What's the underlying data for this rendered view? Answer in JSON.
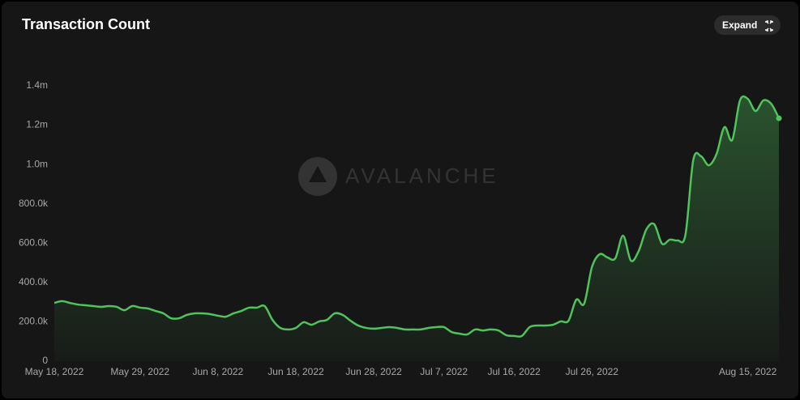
{
  "chart_data": {
    "type": "area",
    "title": "Transaction Count",
    "button": "Expand",
    "watermark": "AVALANCHE",
    "color": "#4fc45c",
    "x": [
      "2022-05-18",
      "2022-05-19",
      "2022-05-20",
      "2022-05-21",
      "2022-05-22",
      "2022-05-23",
      "2022-05-24",
      "2022-05-25",
      "2022-05-26",
      "2022-05-27",
      "2022-05-28",
      "2022-05-29",
      "2022-05-30",
      "2022-05-31",
      "2022-06-01",
      "2022-06-02",
      "2022-06-03",
      "2022-06-04",
      "2022-06-05",
      "2022-06-06",
      "2022-06-07",
      "2022-06-08",
      "2022-06-09",
      "2022-06-10",
      "2022-06-11",
      "2022-06-12",
      "2022-06-13",
      "2022-06-14",
      "2022-06-15",
      "2022-06-16",
      "2022-06-17",
      "2022-06-18",
      "2022-06-19",
      "2022-06-20",
      "2022-06-21",
      "2022-06-22",
      "2022-06-23",
      "2022-06-24",
      "2022-06-25",
      "2022-06-26",
      "2022-06-27",
      "2022-06-28",
      "2022-06-29",
      "2022-06-30",
      "2022-07-01",
      "2022-07-02",
      "2022-07-03",
      "2022-07-04",
      "2022-07-05",
      "2022-07-06",
      "2022-07-07",
      "2022-07-08",
      "2022-07-09",
      "2022-07-10",
      "2022-07-11",
      "2022-07-12",
      "2022-07-13",
      "2022-07-14",
      "2022-07-15",
      "2022-07-16",
      "2022-07-17",
      "2022-07-18",
      "2022-07-19",
      "2022-07-20",
      "2022-07-21",
      "2022-07-22",
      "2022-07-23",
      "2022-07-24",
      "2022-07-25",
      "2022-07-26",
      "2022-07-27",
      "2022-07-28",
      "2022-07-29",
      "2022-07-30",
      "2022-07-31",
      "2022-08-01",
      "2022-08-02",
      "2022-08-03",
      "2022-08-04",
      "2022-08-05",
      "2022-08-06",
      "2022-08-07",
      "2022-08-08",
      "2022-08-09",
      "2022-08-10",
      "2022-08-11",
      "2022-08-12",
      "2022-08-13",
      "2022-08-14",
      "2022-08-15",
      "2022-08-16",
      "2022-08-17",
      "2022-08-18",
      "2022-08-19"
    ],
    "series": [
      {
        "name": "Transaction Count",
        "values": [
          296000,
          305000,
          296000,
          288000,
          284000,
          280000,
          276000,
          280000,
          276000,
          259000,
          280000,
          272000,
          268000,
          255000,
          243000,
          218000,
          218000,
          235000,
          243000,
          243000,
          239000,
          231000,
          226000,
          243000,
          255000,
          272000,
          272000,
          280000,
          210000,
          169000,
          161000,
          169000,
          198000,
          185000,
          202000,
          210000,
          243000,
          235000,
          206000,
          181000,
          169000,
          165000,
          169000,
          173000,
          169000,
          161000,
          161000,
          161000,
          169000,
          173000,
          173000,
          148000,
          140000,
          136000,
          161000,
          156000,
          161000,
          156000,
          132000,
          128000,
          128000,
          173000,
          181000,
          181000,
          185000,
          202000,
          206000,
          313000,
          292000,
          478000,
          544000,
          527000,
          523000,
          638000,
          511000,
          560000,
          671000,
          696000,
          597000,
          618000,
          614000,
          642000,
          1021000,
          1042000,
          996000,
          1054000,
          1190000,
          1124000,
          1326000,
          1334000,
          1272000,
          1326000,
          1309000,
          1235000
        ]
      }
    ],
    "ylim": [
      0,
      1400000
    ],
    "yticks": [
      0,
      {
        "value": 200000,
        "label": "200.0k"
      },
      {
        "value": 400000,
        "label": "400.0k"
      },
      {
        "value": 600000,
        "label": "600.0k"
      },
      {
        "value": 800000,
        "label": "800.0k"
      },
      {
        "value": 1000000,
        "label": "1.0m"
      },
      {
        "value": 1200000,
        "label": "1.2m"
      },
      {
        "value": 1400000,
        "label": "1.4m"
      }
    ],
    "xticks": [
      {
        "value": "2022-05-18",
        "label": "May 18, 2022"
      },
      {
        "value": "2022-05-29",
        "label": "May 29, 2022"
      },
      {
        "value": "2022-06-08",
        "label": "Jun 8, 2022"
      },
      {
        "value": "2022-06-18",
        "label": "Jun 18, 2022"
      },
      {
        "value": "2022-06-28",
        "label": "Jun 28, 2022"
      },
      {
        "value": "2022-07-07",
        "label": "Jul 7, 2022"
      },
      {
        "value": "2022-07-16",
        "label": "Jul 16, 2022"
      },
      {
        "value": "2022-07-26",
        "label": "Jul 26, 2022"
      },
      {
        "value": "2022-08-15",
        "label": "Aug 15, 2022"
      }
    ]
  }
}
